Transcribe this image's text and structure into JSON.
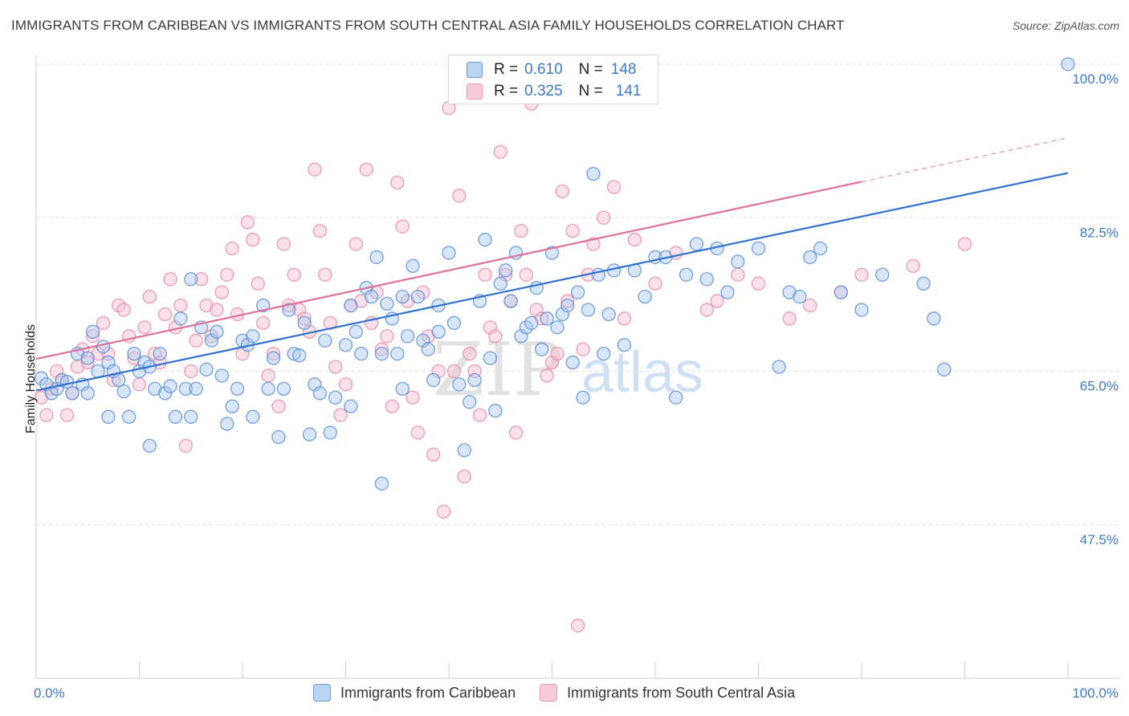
{
  "header": {
    "title": "IMMIGRANTS FROM CARIBBEAN VS IMMIGRANTS FROM SOUTH CENTRAL ASIA FAMILY HOUSEHOLDS CORRELATION CHART",
    "source": "Source: ZipAtlas.com"
  },
  "watermark": {
    "zip": "ZIP",
    "atlas": "atlas"
  },
  "legend": {
    "series1": {
      "r_label": "R =",
      "r_value": "0.610",
      "n_label": "N =",
      "n_value": "148"
    },
    "series2": {
      "r_label": "R =",
      "r_value": "0.325",
      "n_label": "N =",
      "n_value": "141"
    }
  },
  "colors": {
    "blue_fill": "#a9c8f0",
    "blue_stroke": "#5a8fd6",
    "blue_line": "#2f72d0",
    "pink_fill": "#f7bfd0",
    "pink_stroke": "#e88aa8",
    "pink_line": "#e0709a",
    "tick_label": "#3d7ac9",
    "grid": "#dddddd"
  },
  "chart_data": {
    "type": "scatter",
    "title": "IMMIGRANTS FROM CARIBBEAN VS IMMIGRANTS FROM SOUTH CENTRAL ASIA FAMILY HOUSEHOLDS CORRELATION CHART",
    "xlabel": "",
    "ylabel": "Family Households",
    "xlim": [
      0,
      100
    ],
    "ylim": [
      30,
      100
    ],
    "x_tick_labels": [
      "0.0%",
      "100.0%"
    ],
    "y_ticks": [
      47.5,
      65.0,
      82.5,
      100.0
    ],
    "y_tick_labels": [
      "47.5%",
      "65.0%",
      "82.5%",
      "100.0%"
    ],
    "series": [
      {
        "name": "Immigrants from Caribbean",
        "color": "#5a8fd6",
        "trend": {
          "x": [
            0,
            100
          ],
          "y": [
            62.8,
            87.6
          ]
        },
        "points": [
          [
            0.5,
            64.2
          ],
          [
            1,
            63.5
          ],
          [
            1.5,
            62.5
          ],
          [
            2,
            63
          ],
          [
            2.5,
            64
          ],
          [
            3,
            63.8
          ],
          [
            3.5,
            62.5
          ],
          [
            4,
            67
          ],
          [
            4.5,
            63.5
          ],
          [
            5,
            62.5
          ],
          [
            5,
            66.5
          ],
          [
            5.5,
            69.5
          ],
          [
            6,
            65
          ],
          [
            6.5,
            67.8
          ],
          [
            7,
            66
          ],
          [
            7,
            59.8
          ],
          [
            7.5,
            65
          ],
          [
            8,
            64
          ],
          [
            8.5,
            62.7
          ],
          [
            9,
            59.8
          ],
          [
            9.5,
            67
          ],
          [
            10,
            65
          ],
          [
            10.5,
            66
          ],
          [
            11,
            65.5
          ],
          [
            11,
            56.5
          ],
          [
            11.5,
            63
          ],
          [
            12,
            67
          ],
          [
            12.5,
            62.5
          ],
          [
            13,
            63.3
          ],
          [
            13.5,
            59.8
          ],
          [
            14,
            71
          ],
          [
            14.5,
            63
          ],
          [
            15,
            75.5
          ],
          [
            15,
            59.8
          ],
          [
            15.5,
            63
          ],
          [
            16,
            70
          ],
          [
            16.5,
            65.2
          ],
          [
            17,
            68.5
          ],
          [
            17.5,
            69.5
          ],
          [
            18,
            64.5
          ],
          [
            18.5,
            59
          ],
          [
            19,
            61
          ],
          [
            19.5,
            63
          ],
          [
            20,
            68.5
          ],
          [
            20.5,
            68
          ],
          [
            21,
            69
          ],
          [
            21,
            59.8
          ],
          [
            22,
            72.5
          ],
          [
            22.5,
            63
          ],
          [
            23,
            66.5
          ],
          [
            23.5,
            57.5
          ],
          [
            24,
            63
          ],
          [
            24.5,
            72
          ],
          [
            25,
            67
          ],
          [
            25.5,
            66.8
          ],
          [
            26,
            70.5
          ],
          [
            26.5,
            57.8
          ],
          [
            27,
            63.5
          ],
          [
            27.5,
            62.5
          ],
          [
            28,
            68.5
          ],
          [
            28.5,
            58
          ],
          [
            29,
            62
          ],
          [
            30,
            68
          ],
          [
            30.5,
            72.5
          ],
          [
            30.5,
            61
          ],
          [
            31,
            69.5
          ],
          [
            31.5,
            67
          ],
          [
            32,
            74.5
          ],
          [
            32.5,
            73.5
          ],
          [
            33,
            78
          ],
          [
            33.5,
            67
          ],
          [
            33.5,
            52.2
          ],
          [
            34,
            72.7
          ],
          [
            34.5,
            71
          ],
          [
            35,
            67
          ],
          [
            35.5,
            73.5
          ],
          [
            35.5,
            63
          ],
          [
            36,
            69
          ],
          [
            36.5,
            77
          ],
          [
            37,
            73.5
          ],
          [
            37.5,
            68.5
          ],
          [
            38,
            67.5
          ],
          [
            38.5,
            64
          ],
          [
            39,
            69.5
          ],
          [
            39,
            72.5
          ],
          [
            40,
            78.5
          ],
          [
            40.5,
            70.5
          ],
          [
            41,
            63.5
          ],
          [
            41.5,
            56
          ],
          [
            42,
            61.5
          ],
          [
            42.5,
            64
          ],
          [
            43,
            73
          ],
          [
            43.5,
            80
          ],
          [
            44,
            66.5
          ],
          [
            44.5,
            60.5
          ],
          [
            45,
            75
          ],
          [
            45.5,
            76.5
          ],
          [
            46,
            73
          ],
          [
            46.5,
            78.5
          ],
          [
            47,
            69
          ],
          [
            47.5,
            70
          ],
          [
            48,
            70.5
          ],
          [
            48.5,
            74.5
          ],
          [
            49,
            67.5
          ],
          [
            49.5,
            71
          ],
          [
            50,
            78.5
          ],
          [
            50.5,
            70
          ],
          [
            51,
            71.5
          ],
          [
            51.5,
            72.5
          ],
          [
            52,
            66
          ],
          [
            52.5,
            74
          ],
          [
            53,
            62
          ],
          [
            53.5,
            72
          ],
          [
            54,
            87.5
          ],
          [
            54.5,
            76
          ],
          [
            55,
            67
          ],
          [
            55.5,
            71.5
          ],
          [
            56,
            76.5
          ],
          [
            57,
            68
          ],
          [
            58,
            76.5
          ],
          [
            59,
            73.5
          ],
          [
            60,
            78
          ],
          [
            61,
            78
          ],
          [
            62,
            62
          ],
          [
            63,
            76
          ],
          [
            64,
            79.5
          ],
          [
            65,
            75.5
          ],
          [
            66,
            79
          ],
          [
            67,
            74
          ],
          [
            68,
            77.5
          ],
          [
            70,
            79
          ],
          [
            72,
            65.5
          ],
          [
            73,
            74
          ],
          [
            74,
            73.5
          ],
          [
            75,
            78
          ],
          [
            76,
            79
          ],
          [
            78,
            74
          ],
          [
            80,
            72
          ],
          [
            82,
            76
          ],
          [
            86,
            75
          ],
          [
            87,
            71
          ],
          [
            88,
            65.2
          ],
          [
            100,
            100
          ]
        ]
      },
      {
        "name": "Immigrants from South Central Asia",
        "color": "#e88aa8",
        "trend": {
          "x": [
            0,
            80
          ],
          "y": [
            66.4,
            86.6
          ]
        },
        "trend_dashed": {
          "x": [
            80,
            100
          ],
          "y": [
            86.6,
            91.6
          ]
        },
        "points": [
          [
            0.5,
            62
          ],
          [
            1,
            60
          ],
          [
            1.5,
            63
          ],
          [
            2,
            65
          ],
          [
            2.5,
            64
          ],
          [
            3,
            60
          ],
          [
            3.5,
            62.5
          ],
          [
            4,
            65.5
          ],
          [
            4.5,
            67.5
          ],
          [
            5,
            66
          ],
          [
            5.5,
            69
          ],
          [
            6,
            67
          ],
          [
            6.5,
            70.5
          ],
          [
            7,
            67
          ],
          [
            7.5,
            64
          ],
          [
            8,
            72.5
          ],
          [
            8.5,
            72
          ],
          [
            9,
            69
          ],
          [
            9.5,
            66.5
          ],
          [
            10,
            63.5
          ],
          [
            10.5,
            70
          ],
          [
            11,
            73.5
          ],
          [
            11.5,
            67
          ],
          [
            12,
            66
          ],
          [
            12.5,
            71.5
          ],
          [
            13,
            75.5
          ],
          [
            13.5,
            70
          ],
          [
            14,
            72.5
          ],
          [
            14.5,
            56.5
          ],
          [
            15,
            65
          ],
          [
            15.5,
            68.5
          ],
          [
            16,
            75.5
          ],
          [
            16.5,
            72.5
          ],
          [
            17,
            69
          ],
          [
            17.5,
            72
          ],
          [
            18,
            74
          ],
          [
            18.5,
            76
          ],
          [
            19,
            79
          ],
          [
            19.5,
            71.5
          ],
          [
            20,
            67
          ],
          [
            20.5,
            82
          ],
          [
            21,
            80
          ],
          [
            21.5,
            75
          ],
          [
            22,
            70.5
          ],
          [
            22.5,
            64.5
          ],
          [
            23,
            67
          ],
          [
            23.5,
            61
          ],
          [
            24,
            79.5
          ],
          [
            24.5,
            72.5
          ],
          [
            25,
            76
          ],
          [
            25.5,
            72
          ],
          [
            26,
            71
          ],
          [
            26.5,
            69.5
          ],
          [
            27,
            88
          ],
          [
            27.5,
            81
          ],
          [
            28,
            76
          ],
          [
            28.5,
            70.5
          ],
          [
            29,
            65.5
          ],
          [
            29.5,
            60
          ],
          [
            30,
            63.5
          ],
          [
            30.5,
            72.5
          ],
          [
            31,
            79.5
          ],
          [
            31.5,
            73
          ],
          [
            32,
            88
          ],
          [
            32.5,
            70.5
          ],
          [
            33,
            74
          ],
          [
            33.5,
            67.5
          ],
          [
            34,
            69
          ],
          [
            34.5,
            61
          ],
          [
            35,
            86.5
          ],
          [
            35.5,
            81.5
          ],
          [
            36,
            73
          ],
          [
            36.5,
            62
          ],
          [
            37,
            58
          ],
          [
            37.5,
            74
          ],
          [
            38,
            69
          ],
          [
            38.5,
            55.5
          ],
          [
            39,
            65
          ],
          [
            39.5,
            49
          ],
          [
            40,
            95
          ],
          [
            40.5,
            65
          ],
          [
            41,
            85
          ],
          [
            41.5,
            53
          ],
          [
            42,
            67
          ],
          [
            42.5,
            65
          ],
          [
            43,
            60
          ],
          [
            43.5,
            76
          ],
          [
            44,
            70
          ],
          [
            44.5,
            69
          ],
          [
            45,
            90
          ],
          [
            45.5,
            76
          ],
          [
            46,
            73
          ],
          [
            46.5,
            58
          ],
          [
            47,
            81
          ],
          [
            47.5,
            76
          ],
          [
            48,
            95.5
          ],
          [
            48.5,
            72
          ],
          [
            49,
            71
          ],
          [
            49.5,
            64.5
          ],
          [
            50,
            66
          ],
          [
            50.5,
            67
          ],
          [
            51,
            85.5
          ],
          [
            51.5,
            73
          ],
          [
            52,
            81
          ],
          [
            52.5,
            36
          ],
          [
            53,
            67.5
          ],
          [
            53.5,
            76
          ],
          [
            54,
            79.5
          ],
          [
            55,
            82.5
          ],
          [
            56,
            86
          ],
          [
            57,
            71
          ],
          [
            58,
            80
          ],
          [
            60,
            75
          ],
          [
            62,
            78.5
          ],
          [
            65,
            72
          ],
          [
            66,
            73
          ],
          [
            68,
            76
          ],
          [
            70,
            75
          ],
          [
            73,
            71
          ],
          [
            75,
            72.5
          ],
          [
            78,
            74
          ],
          [
            80,
            76
          ],
          [
            85,
            77
          ],
          [
            90,
            79.5
          ]
        ]
      }
    ]
  },
  "bottom_legend": {
    "series1_label": "Immigrants from Caribbean",
    "series2_label": "Immigrants from South Central Asia"
  }
}
